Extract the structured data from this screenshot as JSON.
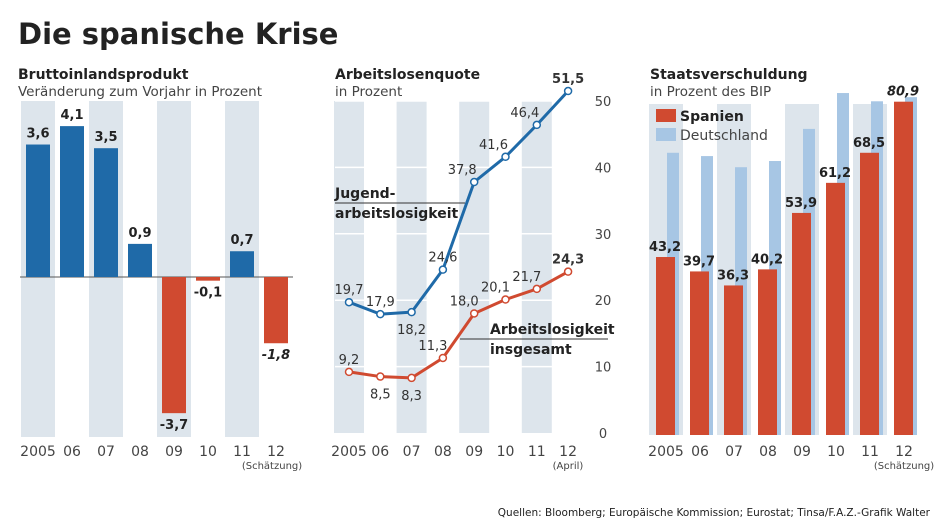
{
  "title": "Die spanische Krise",
  "source": "Quellen: Bloomberg; Europäische Kommission; Eurostat; Tinsa/F.A.Z.-Grafik Walter",
  "colors": {
    "blue": "#1f6aa8",
    "red": "#d04a30",
    "light_blue": "#a7c6e4",
    "stripe": "#dde5ec",
    "text": "#222222"
  },
  "chart_data": [
    {
      "type": "bar",
      "title": "Bruttoinlandsprodukt",
      "subtitle": "Veränderung zum Vorjahr in Prozent",
      "categories": [
        "2005",
        "06",
        "07",
        "08",
        "09",
        "10",
        "11",
        "12"
      ],
      "category_note": "(Schätzung)",
      "values": [
        3.6,
        4.1,
        3.5,
        0.9,
        -3.7,
        -0.1,
        0.7,
        -1.8
      ],
      "labels": [
        "3,6",
        "4,1",
        "3,5",
        "0,9",
        "-3,7",
        "-0,1",
        "0,7",
        "-1,8"
      ],
      "positive_color": "#1f6aa8",
      "negative_color": "#d04a30",
      "ylim": [
        -4.2,
        4.6
      ],
      "grid": false
    },
    {
      "type": "line",
      "title": "Arbeitslosenquote",
      "subtitle": "in Prozent",
      "categories": [
        "2005",
        "06",
        "07",
        "08",
        "09",
        "10",
        "11",
        "12"
      ],
      "category_note": "(April)",
      "yticks": [
        "0",
        "10",
        "20",
        "30",
        "40",
        "50"
      ],
      "ylim": [
        0,
        50
      ],
      "grid": true,
      "axis_side": "right",
      "series": [
        {
          "name": "Jugend- arbeitslosigkeit",
          "name_lines": [
            "Jugend-",
            "arbeitslosigkeit"
          ],
          "color": "#1f6aa8",
          "values": [
            19.7,
            17.9,
            18.2,
            24.6,
            37.8,
            41.6,
            46.4,
            51.5
          ],
          "labels": [
            "19,7",
            "17,9",
            "18,2",
            "24,6",
            "37,8",
            "41,6",
            "46,4",
            "51,5"
          ]
        },
        {
          "name": "Arbeitslosigkeit insgesamt",
          "name_lines": [
            "Arbeitslosigkeit",
            "insgesamt"
          ],
          "color": "#d04a30",
          "values": [
            9.2,
            8.5,
            8.3,
            11.3,
            18.0,
            20.1,
            21.7,
            24.3
          ],
          "labels": [
            "9,2",
            "8,5",
            "8,3",
            "11,3",
            "18,0",
            "20,1",
            "21,7",
            "24,3"
          ]
        }
      ]
    },
    {
      "type": "bar",
      "title": "Staatsverschuldung",
      "subtitle": "in Prozent des BIP",
      "categories": [
        "2005",
        "06",
        "07",
        "08",
        "09",
        "10",
        "11",
        "12"
      ],
      "category_note": "(Schätzung)",
      "ylim": [
        0,
        85
      ],
      "grid": false,
      "legend": "top-left",
      "series": [
        {
          "name": "Spanien",
          "color": "#d04a30",
          "values": [
            43.2,
            39.7,
            36.3,
            40.2,
            53.9,
            61.2,
            68.5,
            80.9
          ],
          "labels": [
            "43,2",
            "39,7",
            "36,3",
            "40,2",
            "53,9",
            "61,2",
            "68,5",
            "80,9"
          ]
        },
        {
          "name": "Deutschland",
          "color": "#a7c6e4",
          "values": [
            68.5,
            67.7,
            65.0,
            66.5,
            74.3,
            83.0,
            81.0,
            82.0
          ]
        }
      ]
    }
  ]
}
